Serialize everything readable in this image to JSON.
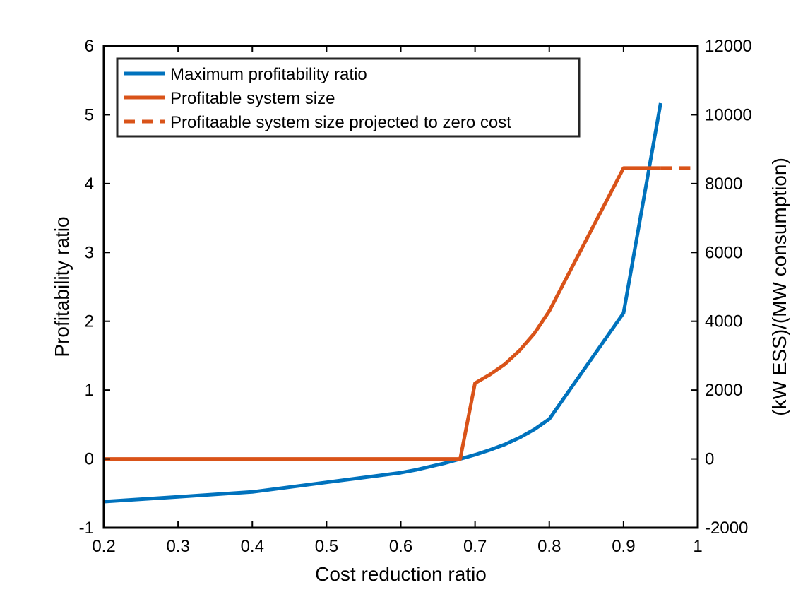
{
  "chart_data": {
    "type": "line",
    "title": "",
    "xlabel": "Cost reduction ratio",
    "ylabel_left": "Profitability ratio",
    "ylabel_right": "(kW ESS)/(MW consumption)",
    "xlim": [
      0.2,
      1
    ],
    "ylim_left": [
      -1,
      6
    ],
    "ylim_right": [
      -2000,
      12000
    ],
    "x_ticks": [
      "0.2",
      "0.3",
      "0.4",
      "0.5",
      "0.6",
      "0.7",
      "0.8",
      "0.9",
      "1"
    ],
    "y_ticks_left": [
      "-1",
      "0",
      "1",
      "2",
      "3",
      "4",
      "5",
      "6"
    ],
    "y_ticks_right": [
      "-2000",
      "0",
      "2000",
      "4000",
      "6000",
      "8000",
      "10000",
      "12000"
    ],
    "grid": false,
    "legend_position": "top-left",
    "series": [
      {
        "name": "Maximum profitability ratio",
        "axis": "left",
        "color": "#0072BD",
        "style": "solid",
        "x": [
          0.2,
          0.3,
          0.4,
          0.5,
          0.6,
          0.62,
          0.64,
          0.66,
          0.68,
          0.7,
          0.72,
          0.74,
          0.76,
          0.78,
          0.8,
          0.9,
          0.95
        ],
        "y": [
          -0.62,
          -0.55,
          -0.48,
          -0.34,
          -0.2,
          -0.16,
          -0.11,
          -0.06,
          0.0,
          0.06,
          0.13,
          0.21,
          0.31,
          0.43,
          0.58,
          2.12,
          5.17
        ]
      },
      {
        "name": "Profitable system size",
        "axis": "right",
        "color": "#D95319",
        "style": "solid",
        "x": [
          0.2,
          0.68,
          0.7,
          0.72,
          0.74,
          0.76,
          0.78,
          0.8,
          0.9,
          0.95
        ],
        "y": [
          0,
          0,
          2200,
          2450,
          2750,
          3150,
          3650,
          4300,
          8450,
          8450
        ]
      },
      {
        "name": "Profitaable system size projected to zero cost",
        "axis": "right",
        "color": "#D95319",
        "style": "dashed",
        "x": [
          0.95,
          1.0
        ],
        "y": [
          8450,
          8450
        ]
      }
    ]
  }
}
